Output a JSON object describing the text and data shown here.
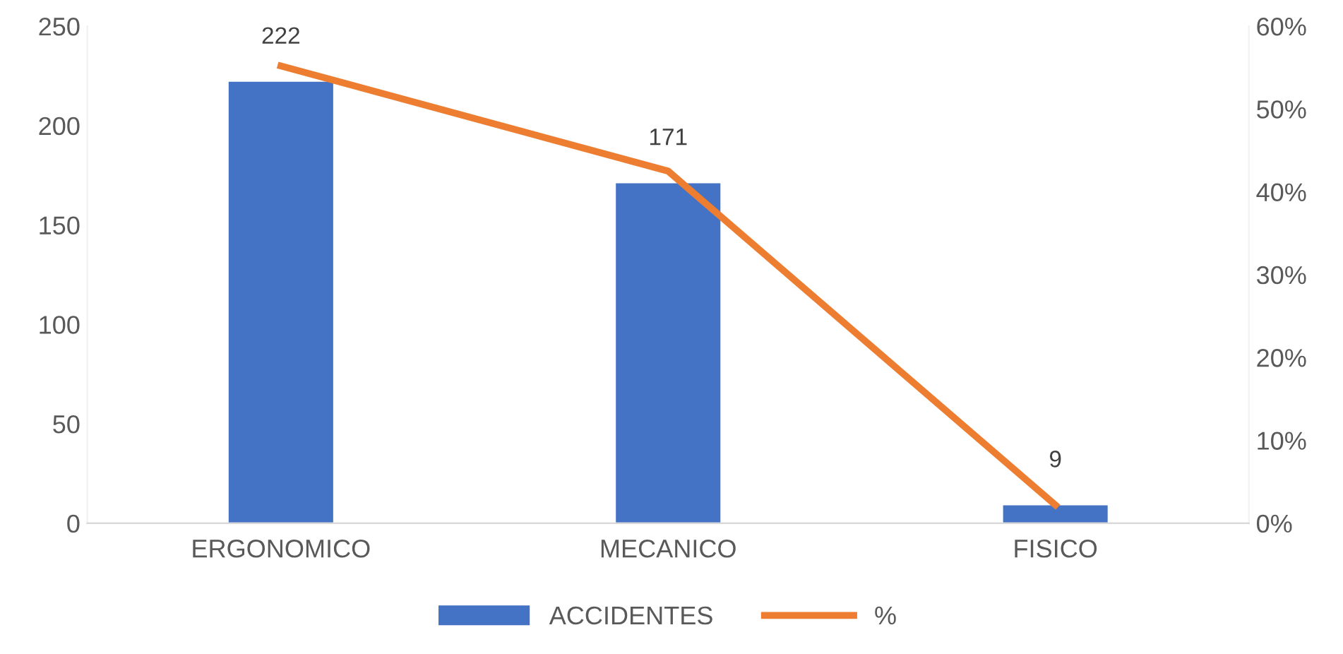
{
  "chart_data": {
    "type": "bar",
    "categories": [
      "ERGONOMICO",
      "MECANICO",
      "FISICO"
    ],
    "series": [
      {
        "name": "ACCIDENTES",
        "color": "#4472c4",
        "values": [
          222,
          171,
          9
        ],
        "data_labels": true
      },
      {
        "name": "%",
        "type": "line",
        "axis": "y2",
        "color": "#ed7d31",
        "values": [
          55.2,
          42.5,
          2.2
        ]
      }
    ],
    "ylim": [
      0,
      250
    ],
    "yticks": [
      0,
      50,
      100,
      150,
      200,
      250
    ],
    "y2lim": [
      0,
      60
    ],
    "y2ticks": [
      {
        "value": 0,
        "label": "0%"
      },
      {
        "value": 10,
        "label": "10%"
      },
      {
        "value": 20,
        "label": "20%"
      },
      {
        "value": 30,
        "label": "30%"
      },
      {
        "value": 40,
        "label": "40%"
      },
      {
        "value": 50,
        "label": "50%"
      },
      {
        "value": 60,
        "label": "60%"
      }
    ],
    "grid": false,
    "legend": "bottom",
    "marker": "none",
    "line_style": "solid"
  }
}
